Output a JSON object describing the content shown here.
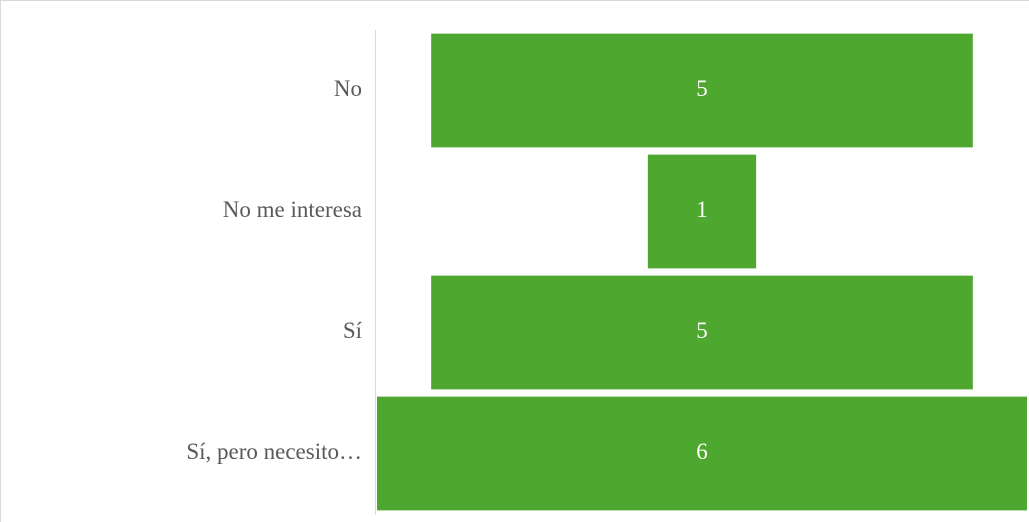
{
  "chart_data": {
    "type": "funnel",
    "categories": [
      "No",
      "No me interesa",
      "Sí",
      "Sí, pero necesito…"
    ],
    "values": [
      5,
      1,
      5,
      6
    ],
    "color": "#4ea72e"
  }
}
